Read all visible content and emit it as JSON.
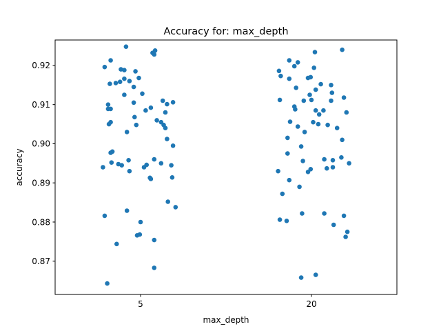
{
  "chart_data": {
    "type": "scatter",
    "title": "Accuracy for: max_depth",
    "xlabel": "max_depth",
    "ylabel": "accuracy",
    "categories": [
      "5",
      "20"
    ],
    "yticks": [
      "0.87",
      "0.88",
      "0.89",
      "0.90",
      "0.91",
      "0.92"
    ],
    "ylim": [
      0.8615,
      0.9265
    ],
    "grid": false,
    "legend": "none",
    "point_color": "#1f77b4",
    "series": [
      {
        "category": "5",
        "points": [
          {
            "x": 4.83,
            "y": 0.9248
          },
          {
            "x": 5.17,
            "y": 0.9238
          },
          {
            "x": 5.14,
            "y": 0.9232
          },
          {
            "x": 5.16,
            "y": 0.9228
          },
          {
            "x": 4.65,
            "y": 0.9213
          },
          {
            "x": 4.58,
            "y": 0.9196
          },
          {
            "x": 4.77,
            "y": 0.919
          },
          {
            "x": 4.81,
            "y": 0.9188
          },
          {
            "x": 4.94,
            "y": 0.9185
          },
          {
            "x": 4.98,
            "y": 0.9168
          },
          {
            "x": 4.81,
            "y": 0.9166
          },
          {
            "x": 4.87,
            "y": 0.916
          },
          {
            "x": 4.76,
            "y": 0.9158
          },
          {
            "x": 4.64,
            "y": 0.9153
          },
          {
            "x": 4.71,
            "y": 0.9155
          },
          {
            "x": 4.92,
            "y": 0.9145
          },
          {
            "x": 5.02,
            "y": 0.9128
          },
          {
            "x": 4.81,
            "y": 0.9125
          },
          {
            "x": 5.26,
            "y": 0.911
          },
          {
            "x": 5.38,
            "y": 0.9106
          },
          {
            "x": 4.92,
            "y": 0.9105
          },
          {
            "x": 5.31,
            "y": 0.9101
          },
          {
            "x": 4.62,
            "y": 0.91
          },
          {
            "x": 5.12,
            "y": 0.9092
          },
          {
            "x": 4.62,
            "y": 0.9089
          },
          {
            "x": 4.65,
            "y": 0.9089
          },
          {
            "x": 5.06,
            "y": 0.9085
          },
          {
            "x": 5.29,
            "y": 0.908
          },
          {
            "x": 4.93,
            "y": 0.9068
          },
          {
            "x": 5.19,
            "y": 0.906
          },
          {
            "x": 4.65,
            "y": 0.9055
          },
          {
            "x": 5.24,
            "y": 0.9055
          },
          {
            "x": 4.63,
            "y": 0.905
          },
          {
            "x": 5.27,
            "y": 0.9048
          },
          {
            "x": 4.95,
            "y": 0.9048
          },
          {
            "x": 5.29,
            "y": 0.904
          },
          {
            "x": 4.84,
            "y": 0.903
          },
          {
            "x": 5.31,
            "y": 0.9012
          },
          {
            "x": 5.38,
            "y": 0.8995
          },
          {
            "x": 4.67,
            "y": 0.898
          },
          {
            "x": 4.65,
            "y": 0.8977
          },
          {
            "x": 5.16,
            "y": 0.896
          },
          {
            "x": 4.86,
            "y": 0.8958
          },
          {
            "x": 4.66,
            "y": 0.8952
          },
          {
            "x": 5.24,
            "y": 0.895
          },
          {
            "x": 4.74,
            "y": 0.8948
          },
          {
            "x": 5.07,
            "y": 0.8946
          },
          {
            "x": 4.78,
            "y": 0.8945
          },
          {
            "x": 5.36,
            "y": 0.8945
          },
          {
            "x": 4.56,
            "y": 0.894
          },
          {
            "x": 5.04,
            "y": 0.894
          },
          {
            "x": 4.87,
            "y": 0.893
          },
          {
            "x": 5.37,
            "y": 0.8914
          },
          {
            "x": 5.11,
            "y": 0.8913
          },
          {
            "x": 5.12,
            "y": 0.891
          },
          {
            "x": 5.32,
            "y": 0.8852
          },
          {
            "x": 5.41,
            "y": 0.8838
          },
          {
            "x": 4.84,
            "y": 0.8829
          },
          {
            "x": 4.58,
            "y": 0.8816
          },
          {
            "x": 5.0,
            "y": 0.88
          },
          {
            "x": 4.99,
            "y": 0.8768
          },
          {
            "x": 4.96,
            "y": 0.8766
          },
          {
            "x": 5.16,
            "y": 0.8754
          },
          {
            "x": 4.72,
            "y": 0.8744
          },
          {
            "x": 5.16,
            "y": 0.8683
          },
          {
            "x": 4.61,
            "y": 0.8643
          }
        ]
      },
      {
        "category": "20",
        "points": [
          {
            "x": 20.36,
            "y": 0.924
          },
          {
            "x": 20.04,
            "y": 0.9234
          },
          {
            "x": 19.74,
            "y": 0.9213
          },
          {
            "x": 19.84,
            "y": 0.9208
          },
          {
            "x": 19.8,
            "y": 0.9198
          },
          {
            "x": 20.03,
            "y": 0.9194
          },
          {
            "x": 19.62,
            "y": 0.9186
          },
          {
            "x": 19.64,
            "y": 0.9173
          },
          {
            "x": 19.99,
            "y": 0.917
          },
          {
            "x": 19.96,
            "y": 0.9168
          },
          {
            "x": 19.74,
            "y": 0.9166
          },
          {
            "x": 20.23,
            "y": 0.915
          },
          {
            "x": 20.11,
            "y": 0.9152
          },
          {
            "x": 19.82,
            "y": 0.9143
          },
          {
            "x": 20.05,
            "y": 0.9138
          },
          {
            "x": 20.24,
            "y": 0.913
          },
          {
            "x": 19.98,
            "y": 0.9125
          },
          {
            "x": 20.38,
            "y": 0.9118
          },
          {
            "x": 19.63,
            "y": 0.9112
          },
          {
            "x": 20.0,
            "y": 0.9112
          },
          {
            "x": 20.23,
            "y": 0.911
          },
          {
            "x": 19.91,
            "y": 0.911
          },
          {
            "x": 19.8,
            "y": 0.9095
          },
          {
            "x": 19.81,
            "y": 0.9088
          },
          {
            "x": 20.05,
            "y": 0.9085
          },
          {
            "x": 20.14,
            "y": 0.9085
          },
          {
            "x": 20.41,
            "y": 0.908
          },
          {
            "x": 20.09,
            "y": 0.9075
          },
          {
            "x": 19.75,
            "y": 0.9056
          },
          {
            "x": 20.02,
            "y": 0.9055
          },
          {
            "x": 20.08,
            "y": 0.905
          },
          {
            "x": 20.19,
            "y": 0.9048
          },
          {
            "x": 19.84,
            "y": 0.9044
          },
          {
            "x": 20.3,
            "y": 0.904
          },
          {
            "x": 19.92,
            "y": 0.903
          },
          {
            "x": 19.72,
            "y": 0.9015
          },
          {
            "x": 20.36,
            "y": 0.901
          },
          {
            "x": 19.88,
            "y": 0.8993
          },
          {
            "x": 19.72,
            "y": 0.8975
          },
          {
            "x": 20.35,
            "y": 0.8965
          },
          {
            "x": 20.15,
            "y": 0.896
          },
          {
            "x": 20.25,
            "y": 0.8958
          },
          {
            "x": 19.9,
            "y": 0.8956
          },
          {
            "x": 20.44,
            "y": 0.895
          },
          {
            "x": 20.25,
            "y": 0.894
          },
          {
            "x": 20.18,
            "y": 0.8937
          },
          {
            "x": 19.99,
            "y": 0.8935
          },
          {
            "x": 19.96,
            "y": 0.8928
          },
          {
            "x": 19.61,
            "y": 0.893
          },
          {
            "x": 19.74,
            "y": 0.8907
          },
          {
            "x": 19.86,
            "y": 0.889
          },
          {
            "x": 19.66,
            "y": 0.8872
          },
          {
            "x": 19.89,
            "y": 0.8822
          },
          {
            "x": 20.15,
            "y": 0.8822
          },
          {
            "x": 20.38,
            "y": 0.8816
          },
          {
            "x": 19.63,
            "y": 0.8806
          },
          {
            "x": 19.71,
            "y": 0.8803
          },
          {
            "x": 20.26,
            "y": 0.8793
          },
          {
            "x": 20.42,
            "y": 0.8775
          },
          {
            "x": 20.4,
            "y": 0.8762
          },
          {
            "x": 20.05,
            "y": 0.8665
          },
          {
            "x": 19.88,
            "y": 0.8658
          }
        ]
      }
    ]
  }
}
